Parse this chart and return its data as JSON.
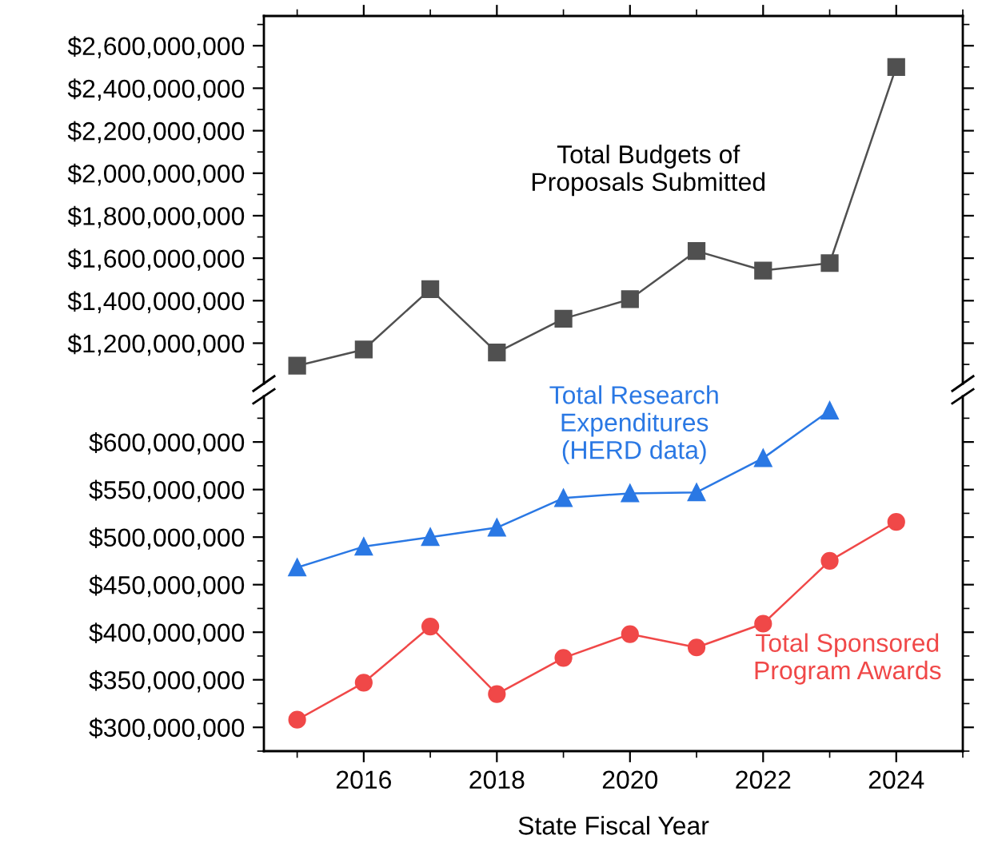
{
  "chart_data": [
    {
      "type": "line",
      "x": [
        2015,
        2016,
        2017,
        2018,
        2019,
        2020,
        2021,
        2022,
        2023,
        2024
      ],
      "xlim": [
        2014.5,
        2025
      ],
      "xticks": [
        2016,
        2018,
        2020,
        2022,
        2024
      ],
      "ylim": [
        1010000000,
        2740000000
      ],
      "yticks": [
        {
          "value": 1200000000,
          "label": "$1,200,000,000"
        },
        {
          "value": 1400000000,
          "label": "$1,400,000,000"
        },
        {
          "value": 1600000000,
          "label": "$1,600,000,000"
        },
        {
          "value": 1800000000,
          "label": "$1,800,000,000"
        },
        {
          "value": 2000000000,
          "label": "$2,000,000,000"
        },
        {
          "value": 2200000000,
          "label": "$2,200,000,000"
        },
        {
          "value": 2400000000,
          "label": "$2,400,000,000"
        },
        {
          "value": 2600000000,
          "label": "$2,600,000,000"
        }
      ],
      "tick_labels": "y",
      "grid": false,
      "legend": false,
      "series": [
        {
          "name": "Total Budgets of\nProposals Submitted",
          "color": "#505050",
          "marker": "square",
          "values": [
            1094000000,
            1170000000,
            1454000000,
            1156000000,
            1315000000,
            1407000000,
            1634000000,
            1542000000,
            1577000000,
            2500000000
          ]
        }
      ]
    },
    {
      "type": "line",
      "x": [
        2015,
        2016,
        2017,
        2018,
        2019,
        2020,
        2021,
        2022,
        2023,
        2024
      ],
      "xlim": [
        2014.5,
        2025
      ],
      "xticks": [
        2016,
        2018,
        2020,
        2022,
        2024
      ],
      "xlabel": "State Fiscal Year",
      "ylim": [
        275000000,
        648000000
      ],
      "yticks": [
        {
          "value": 300000000,
          "label": "$300,000,000"
        },
        {
          "value": 350000000,
          "label": "$350,000,000"
        },
        {
          "value": 400000000,
          "label": "$400,000,000"
        },
        {
          "value": 450000000,
          "label": "$450,000,000"
        },
        {
          "value": 500000000,
          "label": "$500,000,000"
        },
        {
          "value": 550000000,
          "label": "$550,000,000"
        },
        {
          "value": 600000000,
          "label": "$600,000,000"
        }
      ],
      "grid": false,
      "legend": false,
      "series": [
        {
          "name": "Total Research\nExpenditures\n(HERD data)",
          "color": "#2a78e4",
          "marker": "triangle",
          "values": [
            468000000,
            490000000,
            500000000,
            510000000,
            541000000,
            546000000,
            547000000,
            583000000,
            633000000,
            null
          ]
        },
        {
          "name": "Total Sponsored\nProgram Awards",
          "color": "#f04848",
          "marker": "circle",
          "values": [
            308000000,
            347000000,
            406000000,
            335000000,
            373000000,
            398000000,
            384000000,
            409000000,
            475000000,
            516000000
          ]
        }
      ]
    }
  ]
}
